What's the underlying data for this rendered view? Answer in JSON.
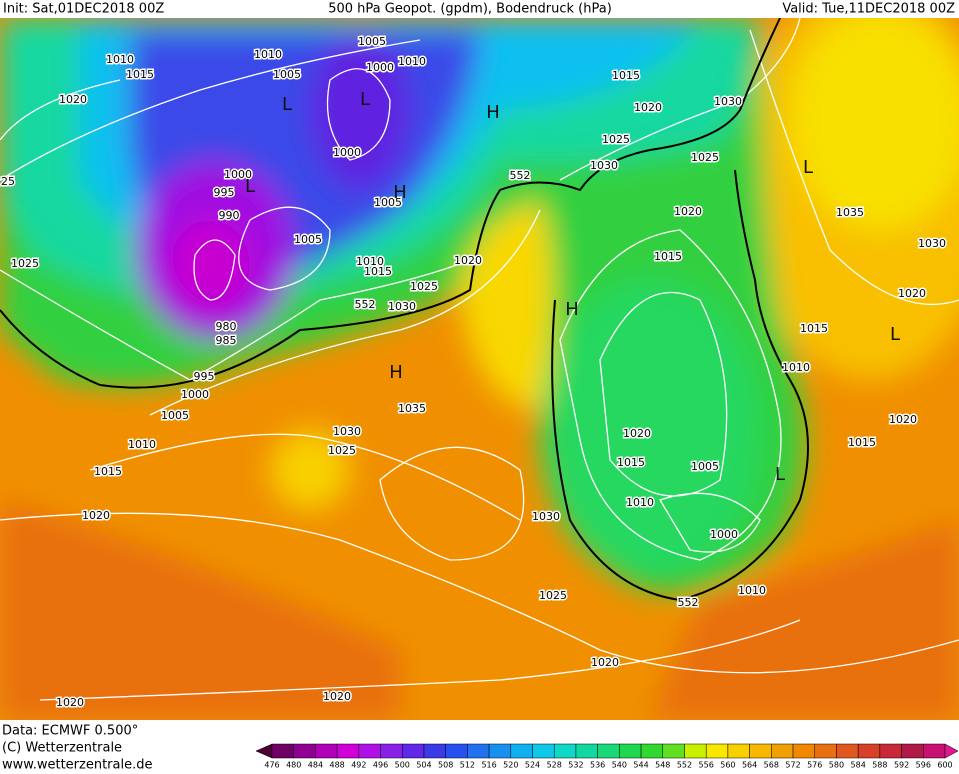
{
  "header": {
    "init": "Init: Sat,01DEC2018 00Z",
    "title": "500 hPa Geopot. (gpdm), Bodendruck (hPa)",
    "valid": "Valid: Tue,11DEC2018 00Z"
  },
  "footer": {
    "data": "Data: ECMWF  0.500°",
    "copyright": "(C) Wetterzentrale",
    "url": "www.wetterzentrale.de"
  },
  "map": {
    "labels": [
      "1010",
      "1015",
      "1020",
      "1010",
      "1005",
      "1005",
      "1010",
      "1000",
      "1015",
      "1020",
      "1030",
      "1025",
      "1030",
      "1025",
      "552",
      "1000",
      "995",
      "1000",
      "990",
      "1005",
      "1005",
      "1010",
      "1015",
      "1020",
      "1025",
      "1025",
      "552",
      "1030",
      "980",
      "985",
      "995",
      "1000",
      "1005",
      "1010",
      "1015",
      "1020",
      "1035",
      "1030",
      "1025",
      "1030",
      "1025",
      "552",
      "1010",
      "1000",
      "1010",
      "1015",
      "1020",
      "1005",
      "1015",
      "1020",
      "1010",
      "1015",
      "1020",
      "1030",
      "1035",
      "1020",
      "1015",
      "1020",
      "1020",
      "1020",
      "25"
    ],
    "centers": [
      "H",
      "H",
      "H",
      "H",
      "L",
      "L",
      "L",
      "L",
      "L",
      "L"
    ]
  },
  "legend": {
    "levels": [
      476,
      480,
      484,
      488,
      492,
      496,
      500,
      504,
      508,
      512,
      516,
      520,
      524,
      528,
      532,
      536,
      540,
      544,
      548,
      552,
      556,
      560,
      564,
      568,
      572,
      576,
      580,
      584,
      588,
      592,
      596,
      600
    ],
    "colors": [
      "#4b0036",
      "#6e0066",
      "#8f0092",
      "#b000b8",
      "#d000d8",
      "#b010e8",
      "#8820e8",
      "#6028e8",
      "#3a3ae8",
      "#2850f0",
      "#2070f0",
      "#1890f0",
      "#10b0f0",
      "#10c8e8",
      "#10d8c8",
      "#10d8a0",
      "#18d878",
      "#20d850",
      "#30d830",
      "#60e020",
      "#c8f000",
      "#f8e800",
      "#f8d000",
      "#f8b800",
      "#f0a000",
      "#f08800",
      "#e87010",
      "#e05820",
      "#d84028",
      "#c82838",
      "#b01848",
      "#c81070",
      "#e01890"
    ]
  }
}
